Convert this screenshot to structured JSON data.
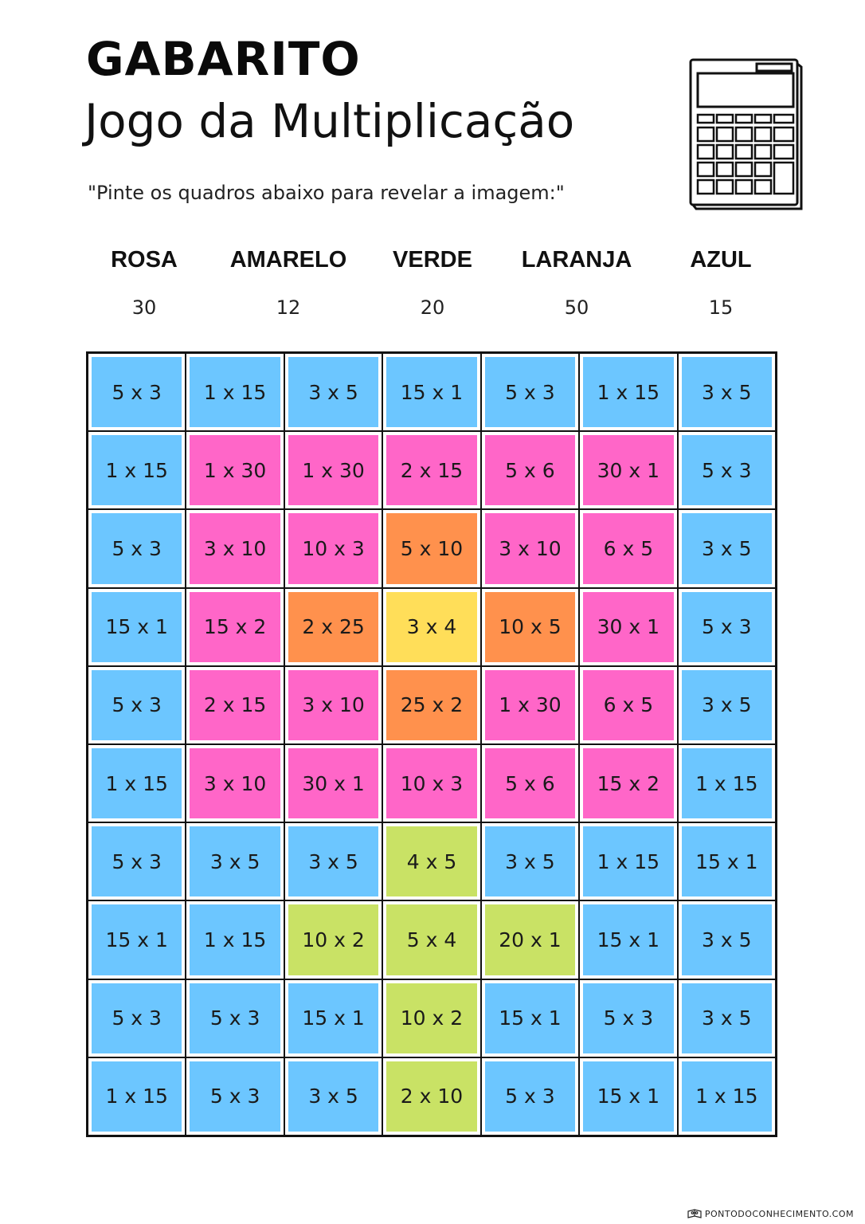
{
  "header": {
    "title": "GABARITO",
    "subtitle": "Jogo da Multiplicação",
    "instruction": "\"Pinte os quadros abaixo para revelar a imagem:\""
  },
  "legend": [
    {
      "name": "ROSA",
      "value": "30"
    },
    {
      "name": "AMARELO",
      "value": "12"
    },
    {
      "name": "VERDE",
      "value": "20"
    },
    {
      "name": "LARANJA",
      "value": "50"
    },
    {
      "name": "AZUL",
      "value": "15"
    }
  ],
  "colors": {
    "blue": "#6cc6ff",
    "pink": "#ff66c8",
    "orange": "#ff914d",
    "yellow": "#ffde59",
    "green": "#c9e265"
  },
  "grid": {
    "rows": [
      [
        {
          "t": "5 x 3",
          "c": "blue"
        },
        {
          "t": "1 x 15",
          "c": "blue"
        },
        {
          "t": "3 x 5",
          "c": "blue"
        },
        {
          "t": "15 x 1",
          "c": "blue"
        },
        {
          "t": "5 x 3",
          "c": "blue"
        },
        {
          "t": "1 x 15",
          "c": "blue"
        },
        {
          "t": "3 x 5",
          "c": "blue"
        }
      ],
      [
        {
          "t": "1 x 15",
          "c": "blue"
        },
        {
          "t": "1 x 30",
          "c": "pink"
        },
        {
          "t": "1 x 30",
          "c": "pink"
        },
        {
          "t": "2 x 15",
          "c": "pink"
        },
        {
          "t": "5 x 6",
          "c": "pink"
        },
        {
          "t": "30 x 1",
          "c": "pink"
        },
        {
          "t": "5 x 3",
          "c": "blue"
        }
      ],
      [
        {
          "t": "5 x 3",
          "c": "blue"
        },
        {
          "t": "3 x 10",
          "c": "pink"
        },
        {
          "t": "10 x 3",
          "c": "pink"
        },
        {
          "t": "5 x 10",
          "c": "orange"
        },
        {
          "t": "3 x 10",
          "c": "pink"
        },
        {
          "t": "6 x 5",
          "c": "pink"
        },
        {
          "t": "3 x 5",
          "c": "blue"
        }
      ],
      [
        {
          "t": "15 x 1",
          "c": "blue"
        },
        {
          "t": "15 x 2",
          "c": "pink"
        },
        {
          "t": "2 x 25",
          "c": "orange"
        },
        {
          "t": "3 x 4",
          "c": "yellow"
        },
        {
          "t": "10 x 5",
          "c": "orange"
        },
        {
          "t": "30 x 1",
          "c": "pink"
        },
        {
          "t": "5 x 3",
          "c": "blue"
        }
      ],
      [
        {
          "t": "5 x 3",
          "c": "blue"
        },
        {
          "t": "2 x 15",
          "c": "pink"
        },
        {
          "t": "3 x 10",
          "c": "pink"
        },
        {
          "t": "25 x 2",
          "c": "orange"
        },
        {
          "t": "1 x 30",
          "c": "pink"
        },
        {
          "t": "6 x 5",
          "c": "pink"
        },
        {
          "t": "3 x 5",
          "c": "blue"
        }
      ],
      [
        {
          "t": "1 x 15",
          "c": "blue"
        },
        {
          "t": "3 x 10",
          "c": "pink"
        },
        {
          "t": "30 x 1",
          "c": "pink"
        },
        {
          "t": "10 x 3",
          "c": "pink"
        },
        {
          "t": "5 x 6",
          "c": "pink"
        },
        {
          "t": "15 x 2",
          "c": "pink"
        },
        {
          "t": "1 x 15",
          "c": "blue"
        }
      ],
      [
        {
          "t": "5 x 3",
          "c": "blue"
        },
        {
          "t": "3 x 5",
          "c": "blue"
        },
        {
          "t": "3 x 5",
          "c": "blue"
        },
        {
          "t": "4 x 5",
          "c": "green"
        },
        {
          "t": "3 x 5",
          "c": "blue"
        },
        {
          "t": "1 x 15",
          "c": "blue"
        },
        {
          "t": "15 x 1",
          "c": "blue"
        }
      ],
      [
        {
          "t": "15 x 1",
          "c": "blue"
        },
        {
          "t": "1 x 15",
          "c": "blue"
        },
        {
          "t": "10 x 2",
          "c": "green"
        },
        {
          "t": "5 x 4",
          "c": "green"
        },
        {
          "t": "20 x 1",
          "c": "green"
        },
        {
          "t": "15 x 1",
          "c": "blue"
        },
        {
          "t": "3 x 5",
          "c": "blue"
        }
      ],
      [
        {
          "t": "5 x 3",
          "c": "blue"
        },
        {
          "t": "5 x 3",
          "c": "blue"
        },
        {
          "t": "15 x 1",
          "c": "blue"
        },
        {
          "t": "10 x 2",
          "c": "green"
        },
        {
          "t": "15 x 1",
          "c": "blue"
        },
        {
          "t": "5 x 3",
          "c": "blue"
        },
        {
          "t": "3 x 5",
          "c": "blue"
        }
      ],
      [
        {
          "t": "1 x 15",
          "c": "blue"
        },
        {
          "t": "5 x 3",
          "c": "blue"
        },
        {
          "t": "3 x 5",
          "c": "blue"
        },
        {
          "t": "2 x 10",
          "c": "green"
        },
        {
          "t": "5 x 3",
          "c": "blue"
        },
        {
          "t": "15 x 1",
          "c": "blue"
        },
        {
          "t": "1 x 15",
          "c": "blue"
        }
      ]
    ]
  },
  "footer": {
    "site": "PONTODOCONHECIMENTO.COM",
    "icon": "book-owl-icon"
  }
}
